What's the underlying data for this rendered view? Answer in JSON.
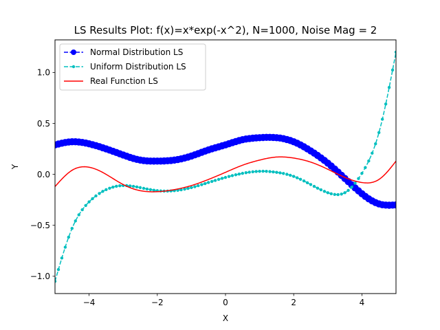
{
  "chart_data": {
    "type": "line",
    "title": "LS Results Plot: f(x)=x*exp(-x^2), N=1000, Noise Mag = 2",
    "xlabel": "X",
    "ylabel": "Y",
    "xlim": [
      -5,
      5
    ],
    "ylim": [
      -1.17,
      1.32
    ],
    "xticks": [
      -4,
      -2,
      0,
      2,
      4
    ],
    "yticks": [
      -1.0,
      -0.5,
      0.0,
      0.5,
      1.0
    ],
    "xtick_labels": [
      "−4",
      "−2",
      "0",
      "2",
      "4"
    ],
    "ytick_labels": [
      "−1.0",
      "−0.5",
      "0.0",
      "0.5",
      "1.0"
    ],
    "grid": false,
    "legend_position": "top-left",
    "x": [
      -5.0,
      -4.5,
      -4.0,
      -3.5,
      -3.0,
      -2.5,
      -2.0,
      -1.5,
      -1.0,
      -0.5,
      0.0,
      0.5,
      1.0,
      1.5,
      2.0,
      2.5,
      3.0,
      3.5,
      4.0,
      4.5,
      5.0
    ],
    "series": [
      {
        "name": "Normal Distribution LS",
        "color": "#0000ff",
        "style": "dashed-large-markers",
        "values": [
          0.29,
          0.32,
          0.3,
          0.25,
          0.19,
          0.14,
          0.13,
          0.14,
          0.18,
          0.24,
          0.29,
          0.34,
          0.36,
          0.36,
          0.32,
          0.23,
          0.11,
          -0.04,
          -0.19,
          -0.29,
          -0.3
        ]
      },
      {
        "name": "Uniform Distribution LS",
        "color": "#00bfbf",
        "style": "dashed-small-markers",
        "values": [
          -1.05,
          -0.53,
          -0.27,
          -0.15,
          -0.11,
          -0.13,
          -0.16,
          -0.16,
          -0.13,
          -0.08,
          -0.03,
          0.01,
          0.03,
          0.02,
          -0.02,
          -0.1,
          -0.18,
          -0.18,
          0.01,
          0.41,
          1.2
        ]
      },
      {
        "name": "Real Function LS",
        "color": "#ff0000",
        "style": "solid",
        "values": [
          -0.12,
          0.04,
          0.07,
          0.0,
          -0.1,
          -0.16,
          -0.17,
          -0.15,
          -0.11,
          -0.05,
          0.02,
          0.09,
          0.14,
          0.17,
          0.16,
          0.12,
          0.05,
          -0.03,
          -0.08,
          -0.05,
          0.13
        ]
      }
    ]
  }
}
